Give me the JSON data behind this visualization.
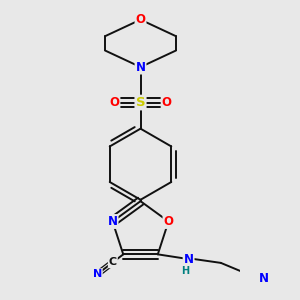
{
  "background_color": "#e8e8e8",
  "atom_colors": {
    "N": "#0000ff",
    "O": "#ff0000",
    "S": "#cccc00",
    "C": "#111111",
    "H": "#008080"
  },
  "bond_color": "#111111",
  "bond_width": 1.4,
  "fig_width": 3.0,
  "fig_height": 3.0,
  "dpi": 100
}
